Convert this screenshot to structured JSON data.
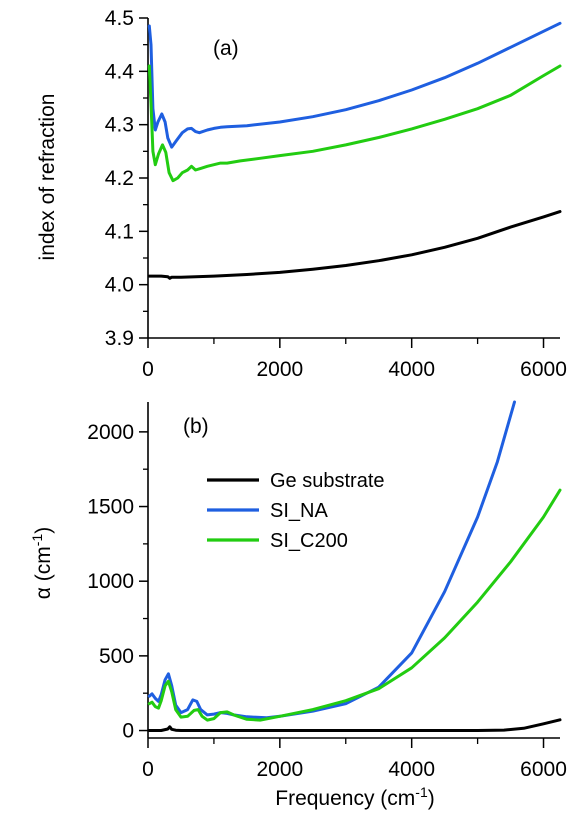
{
  "chart_data": [
    {
      "type": "line",
      "panel_label": "(a)",
      "xlabel": "",
      "ylabel": "index of refraction",
      "xlim": [
        0,
        6250
      ],
      "ylim": [
        3.9,
        4.5
      ],
      "xticks": [
        0,
        2000,
        4000,
        6000
      ],
      "xtick_labels": [
        "0",
        "2000",
        "4000",
        "6000"
      ],
      "yticks": [
        3.9,
        4.0,
        4.1,
        4.2,
        4.3,
        4.4,
        4.5
      ],
      "ytick_labels": [
        "3.9",
        "4.0",
        "4.1",
        "4.2",
        "4.3",
        "4.4",
        "4.5"
      ],
      "grid": false,
      "series": [
        {
          "name": "Ge substrate",
          "color": "#000000",
          "points": [
            [
              20,
              4.016
            ],
            [
              100,
              4.016
            ],
            [
              200,
              4.016
            ],
            [
              300,
              4.015
            ],
            [
              330,
              4.012
            ],
            [
              360,
              4.014
            ],
            [
              500,
              4.014
            ],
            [
              1000,
              4.016
            ],
            [
              1500,
              4.019
            ],
            [
              2000,
              4.023
            ],
            [
              2500,
              4.029
            ],
            [
              3000,
              4.036
            ],
            [
              3500,
              4.045
            ],
            [
              4000,
              4.056
            ],
            [
              4500,
              4.07
            ],
            [
              5000,
              4.087
            ],
            [
              5500,
              4.108
            ],
            [
              6000,
              4.127
            ],
            [
              6250,
              4.137
            ]
          ]
        },
        {
          "name": "SI_NA",
          "color": "#1f5fe0",
          "points": [
            [
              20,
              4.485
            ],
            [
              45,
              4.45
            ],
            [
              75,
              4.33
            ],
            [
              110,
              4.29
            ],
            [
              150,
              4.305
            ],
            [
              210,
              4.32
            ],
            [
              260,
              4.305
            ],
            [
              300,
              4.275
            ],
            [
              360,
              4.258
            ],
            [
              430,
              4.27
            ],
            [
              520,
              4.285
            ],
            [
              600,
              4.292
            ],
            [
              660,
              4.293
            ],
            [
              720,
              4.287
            ],
            [
              780,
              4.285
            ],
            [
              900,
              4.29
            ],
            [
              1000,
              4.293
            ],
            [
              1100,
              4.295
            ],
            [
              1200,
              4.296
            ],
            [
              1500,
              4.298
            ],
            [
              2000,
              4.305
            ],
            [
              2500,
              4.315
            ],
            [
              3000,
              4.328
            ],
            [
              3500,
              4.345
            ],
            [
              4000,
              4.365
            ],
            [
              4500,
              4.388
            ],
            [
              5000,
              4.415
            ],
            [
              5500,
              4.445
            ],
            [
              6000,
              4.475
            ],
            [
              6250,
              4.49
            ]
          ]
        },
        {
          "name": "SI_C200",
          "color": "#22cc11",
          "points": [
            [
              20,
              4.41
            ],
            [
              45,
              4.34
            ],
            [
              75,
              4.25
            ],
            [
              110,
              4.225
            ],
            [
              160,
              4.245
            ],
            [
              220,
              4.262
            ],
            [
              270,
              4.248
            ],
            [
              320,
              4.21
            ],
            [
              380,
              4.195
            ],
            [
              450,
              4.2
            ],
            [
              520,
              4.21
            ],
            [
              600,
              4.215
            ],
            [
              660,
              4.222
            ],
            [
              720,
              4.215
            ],
            [
              800,
              4.218
            ],
            [
              900,
              4.222
            ],
            [
              1000,
              4.225
            ],
            [
              1100,
              4.228
            ],
            [
              1200,
              4.228
            ],
            [
              1400,
              4.232
            ],
            [
              1700,
              4.237
            ],
            [
              2000,
              4.242
            ],
            [
              2500,
              4.25
            ],
            [
              3000,
              4.262
            ],
            [
              3500,
              4.276
            ],
            [
              4000,
              4.292
            ],
            [
              4500,
              4.31
            ],
            [
              5000,
              4.33
            ],
            [
              5500,
              4.355
            ],
            [
              6000,
              4.392
            ],
            [
              6250,
              4.41
            ]
          ]
        }
      ]
    },
    {
      "type": "line",
      "panel_label": "(b)",
      "xlabel": "Frequency (cm⁻¹)",
      "ylabel": "α (cm⁻¹)",
      "xlim": [
        0,
        6250
      ],
      "ylim": [
        -50,
        2200
      ],
      "xticks": [
        0,
        2000,
        4000,
        6000
      ],
      "xtick_labels": [
        "0",
        "2000",
        "4000",
        "6000"
      ],
      "yticks": [
        0,
        500,
        1000,
        1500,
        2000
      ],
      "ytick_labels": [
        "0",
        "500",
        "1000",
        "1500",
        "2000"
      ],
      "grid": false,
      "legend_placement": "upper-center",
      "series": [
        {
          "name": "Ge substrate",
          "color": "#000000",
          "points": [
            [
              20,
              0
            ],
            [
              200,
              0
            ],
            [
              300,
              10
            ],
            [
              330,
              25
            ],
            [
              360,
              8
            ],
            [
              420,
              2
            ],
            [
              500,
              0
            ],
            [
              1000,
              0
            ],
            [
              2000,
              0
            ],
            [
              3000,
              0
            ],
            [
              4000,
              0
            ],
            [
              5000,
              0
            ],
            [
              5400,
              3
            ],
            [
              5700,
              15
            ],
            [
              6000,
              45
            ],
            [
              6250,
              72
            ]
          ]
        },
        {
          "name": "SI_NA",
          "color": "#1f5fe0",
          "points": [
            [
              20,
              230
            ],
            [
              60,
              245
            ],
            [
              110,
              215
            ],
            [
              160,
              195
            ],
            [
              200,
              240
            ],
            [
              260,
              340
            ],
            [
              310,
              380
            ],
            [
              360,
              300
            ],
            [
              420,
              170
            ],
            [
              500,
              120
            ],
            [
              600,
              140
            ],
            [
              680,
              205
            ],
            [
              740,
              195
            ],
            [
              800,
              140
            ],
            [
              900,
              105
            ],
            [
              1000,
              110
            ],
            [
              1100,
              120
            ],
            [
              1200,
              115
            ],
            [
              1300,
              105
            ],
            [
              1500,
              92
            ],
            [
              1800,
              85
            ],
            [
              2000,
              95
            ],
            [
              2500,
              130
            ],
            [
              3000,
              180
            ],
            [
              3500,
              290
            ],
            [
              4000,
              520
            ],
            [
              4500,
              930
            ],
            [
              5000,
              1430
            ],
            [
              5300,
              1800
            ],
            [
              5560,
              2200
            ]
          ]
        },
        {
          "name": "SI_C200",
          "color": "#22cc11",
          "points": [
            [
              20,
              180
            ],
            [
              60,
              190
            ],
            [
              110,
              160
            ],
            [
              160,
              150
            ],
            [
              200,
              200
            ],
            [
              260,
              300
            ],
            [
              310,
              330
            ],
            [
              360,
              260
            ],
            [
              420,
              140
            ],
            [
              500,
              90
            ],
            [
              600,
              95
            ],
            [
              700,
              135
            ],
            [
              760,
              140
            ],
            [
              820,
              95
            ],
            [
              900,
              70
            ],
            [
              1000,
              80
            ],
            [
              1100,
              120
            ],
            [
              1200,
              125
            ],
            [
              1300,
              105
            ],
            [
              1500,
              75
            ],
            [
              1700,
              70
            ],
            [
              2000,
              95
            ],
            [
              2500,
              140
            ],
            [
              3000,
              200
            ],
            [
              3500,
              280
            ],
            [
              4000,
              420
            ],
            [
              4500,
              620
            ],
            [
              5000,
              860
            ],
            [
              5500,
              1130
            ],
            [
              6000,
              1430
            ],
            [
              6250,
              1610
            ]
          ]
        }
      ]
    }
  ]
}
